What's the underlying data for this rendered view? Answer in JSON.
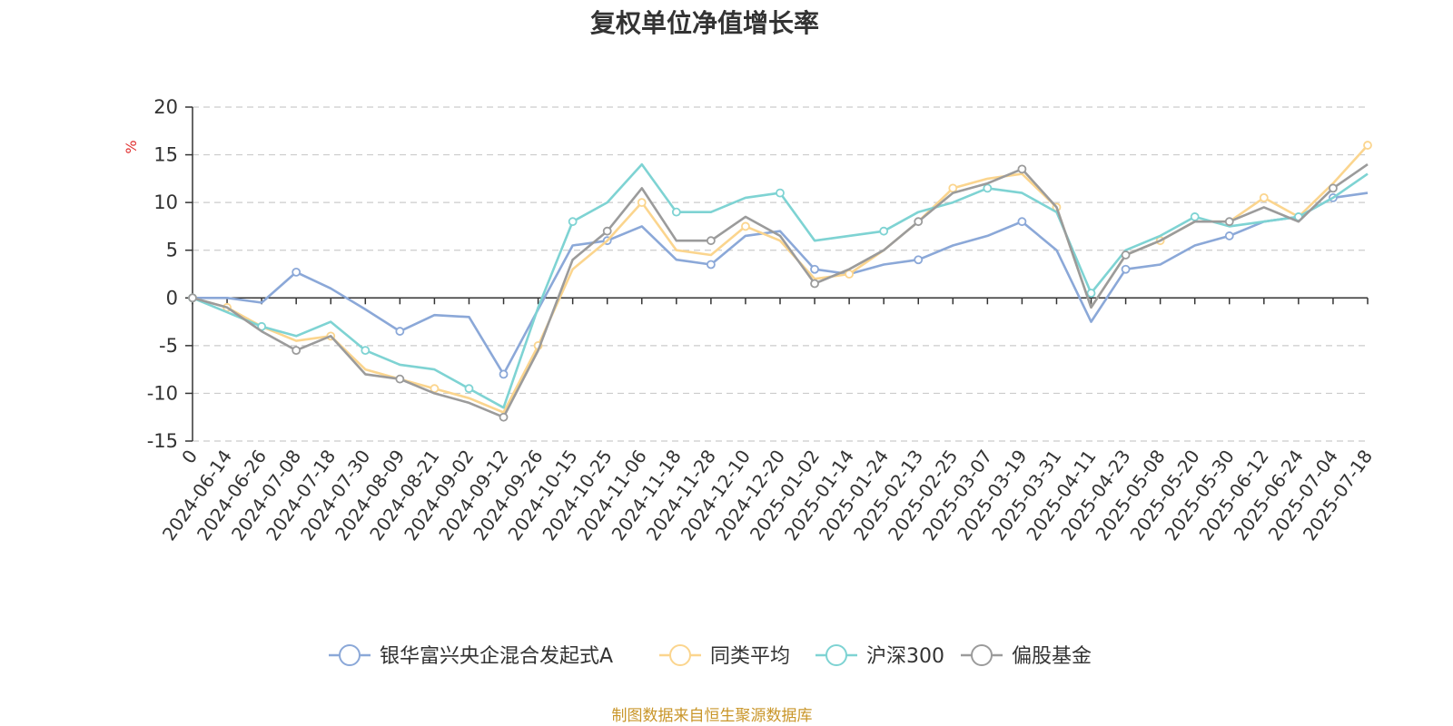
{
  "chart_data": {
    "type": "line",
    "title": "复权单位净值增长率",
    "ylabel": "%",
    "ylim": [
      -15,
      20
    ],
    "yticks": [
      "20",
      "15",
      "10",
      "5",
      "0",
      "-5",
      "-10",
      "-15"
    ],
    "grid": true,
    "legend_position": "bottom",
    "source": "制图数据来自恒生聚源数据库",
    "x": [
      "0",
      "2024-06-14",
      "2024-06-26",
      "2024-07-08",
      "2024-07-18",
      "2024-07-30",
      "2024-08-09",
      "2024-08-21",
      "2024-09-02",
      "2024-09-12",
      "2024-09-26",
      "2024-10-15",
      "2024-10-25",
      "2024-11-06",
      "2024-11-18",
      "2024-11-28",
      "2024-12-10",
      "2024-12-20",
      "2025-01-02",
      "2025-01-14",
      "2025-01-24",
      "2025-02-13",
      "2025-02-25",
      "2025-03-07",
      "2025-03-19",
      "2025-03-31",
      "2025-04-11",
      "2025-04-23",
      "2025-05-08",
      "2025-05-20",
      "2025-05-30",
      "2025-06-12",
      "2025-06-24",
      "2025-07-04",
      "2025-07-18"
    ],
    "series": [
      {
        "name": "银华富兴央企混合发起式A",
        "color": "#8ba8d8",
        "values": [
          0,
          0,
          -0.5,
          2.7,
          1.0,
          -1.2,
          -3.5,
          -1.8,
          -2.0,
          -8.0,
          -1.2,
          5.5,
          6.0,
          7.5,
          4.0,
          3.5,
          6.5,
          7.0,
          3.0,
          2.5,
          3.5,
          4.0,
          5.5,
          6.5,
          8.0,
          5.0,
          -2.5,
          3.0,
          3.5,
          5.5,
          6.5,
          8.0,
          8.5,
          10.5,
          11.0
        ]
      },
      {
        "name": "同类平均",
        "color": "#fbd58e",
        "values": [
          0,
          -1.0,
          -3.0,
          -4.5,
          -4.0,
          -7.5,
          -8.5,
          -9.5,
          -10.5,
          -12.0,
          -5.0,
          3.0,
          6.0,
          10.0,
          5.0,
          4.5,
          7.5,
          6.0,
          2.0,
          2.5,
          5.0,
          8.0,
          11.5,
          12.5,
          13.0,
          9.5,
          -1.0,
          4.5,
          6.0,
          8.0,
          8.0,
          10.5,
          8.5,
          12.0,
          16.0
        ]
      },
      {
        "name": "沪深300",
        "color": "#7ed3d3",
        "values": [
          0,
          -1.5,
          -3.0,
          -4.0,
          -2.5,
          -5.5,
          -7.0,
          -7.5,
          -9.5,
          -11.5,
          -1.0,
          8.0,
          10.0,
          14.0,
          9.0,
          9.0,
          10.5,
          11.0,
          6.0,
          6.5,
          7.0,
          9.0,
          10.0,
          11.5,
          11.0,
          9.0,
          0.5,
          5.0,
          6.5,
          8.5,
          7.5,
          8.0,
          8.5,
          10.5,
          13.0
        ]
      },
      {
        "name": "偏股基金",
        "color": "#9b9b9b",
        "values": [
          0,
          -1.0,
          -3.5,
          -5.5,
          -4.0,
          -8.0,
          -8.5,
          -10.0,
          -11.0,
          -12.5,
          -5.5,
          4.0,
          7.0,
          11.5,
          6.0,
          6.0,
          8.5,
          6.5,
          1.5,
          3.0,
          5.0,
          8.0,
          11.0,
          12.0,
          13.5,
          9.5,
          -1.0,
          4.5,
          6.0,
          8.0,
          8.0,
          9.5,
          8.0,
          11.5,
          14.0
        ]
      }
    ]
  }
}
